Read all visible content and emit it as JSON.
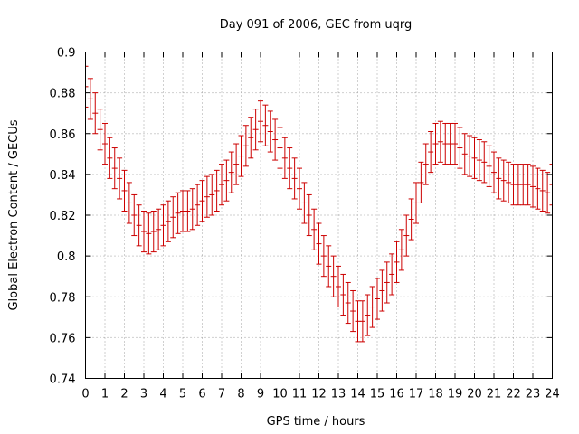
{
  "chart_data": {
    "type": "errorbar",
    "title": "Day 091 of 2006, GEC from uqrg",
    "xlabel": "GPS time / hours",
    "ylabel": "Global Electron Content / GECUs",
    "xlim": [
      0,
      24
    ],
    "ylim": [
      0.74,
      0.9
    ],
    "xticks": [
      0,
      1,
      2,
      3,
      4,
      5,
      6,
      7,
      8,
      9,
      10,
      11,
      12,
      13,
      14,
      15,
      16,
      17,
      18,
      19,
      20,
      21,
      22,
      23,
      24
    ],
    "xtick_labels": [
      "0",
      "1",
      "2",
      "3",
      "4",
      "5",
      "6",
      "7",
      "8",
      "9",
      "10",
      "11",
      "12",
      "13",
      "14",
      "15",
      "16",
      "17",
      "18",
      "19",
      "20",
      "21",
      "22",
      "23",
      "24"
    ],
    "yticks": [
      0.74,
      0.76,
      0.78,
      0.8,
      0.82,
      0.84,
      0.86,
      0.88,
      0.9
    ],
    "ytick_labels": [
      "0.74",
      "0.76",
      "0.78",
      "0.8",
      "0.82",
      "0.84",
      "0.86",
      "0.88",
      "0.9"
    ],
    "grid": true,
    "series": [
      {
        "name": "GEC",
        "color": "#cc0000",
        "error": 0.01,
        "x": [
          0,
          0.25,
          0.5,
          0.75,
          1,
          1.25,
          1.5,
          1.75,
          2,
          2.25,
          2.5,
          2.75,
          3,
          3.25,
          3.5,
          3.75,
          4,
          4.25,
          4.5,
          4.75,
          5,
          5.25,
          5.5,
          5.75,
          6,
          6.25,
          6.5,
          6.75,
          7,
          7.25,
          7.5,
          7.75,
          8,
          8.25,
          8.5,
          8.75,
          9,
          9.25,
          9.5,
          9.75,
          10,
          10.25,
          10.5,
          10.75,
          11,
          11.25,
          11.5,
          11.75,
          12,
          12.25,
          12.5,
          12.75,
          13,
          13.25,
          13.5,
          13.75,
          14,
          14.25,
          14.5,
          14.75,
          15,
          15.25,
          15.5,
          15.75,
          16,
          16.25,
          16.5,
          16.75,
          17,
          17.25,
          17.5,
          17.75,
          18,
          18.25,
          18.5,
          18.75,
          19,
          19.25,
          19.5,
          19.75,
          20,
          20.25,
          20.5,
          20.75,
          21,
          21.25,
          21.5,
          21.75,
          22,
          22.25,
          22.5,
          22.75,
          23,
          23.25,
          23.5,
          23.75,
          24
        ],
        "values": [
          0.883,
          0.877,
          0.87,
          0.862,
          0.855,
          0.848,
          0.843,
          0.838,
          0.832,
          0.826,
          0.82,
          0.815,
          0.812,
          0.811,
          0.812,
          0.813,
          0.815,
          0.817,
          0.819,
          0.821,
          0.822,
          0.822,
          0.823,
          0.825,
          0.827,
          0.829,
          0.83,
          0.832,
          0.835,
          0.837,
          0.841,
          0.845,
          0.849,
          0.854,
          0.858,
          0.862,
          0.866,
          0.864,
          0.861,
          0.857,
          0.853,
          0.848,
          0.843,
          0.838,
          0.833,
          0.826,
          0.82,
          0.813,
          0.806,
          0.8,
          0.795,
          0.79,
          0.785,
          0.781,
          0.777,
          0.773,
          0.768,
          0.768,
          0.771,
          0.775,
          0.779,
          0.783,
          0.787,
          0.791,
          0.797,
          0.803,
          0.81,
          0.818,
          0.826,
          0.836,
          0.845,
          0.851,
          0.855,
          0.856,
          0.855,
          0.855,
          0.855,
          0.853,
          0.85,
          0.849,
          0.848,
          0.847,
          0.846,
          0.844,
          0.841,
          0.838,
          0.837,
          0.836,
          0.835,
          0.835,
          0.835,
          0.835,
          0.834,
          0.833,
          0.832,
          0.831,
          0.835
        ]
      }
    ]
  }
}
